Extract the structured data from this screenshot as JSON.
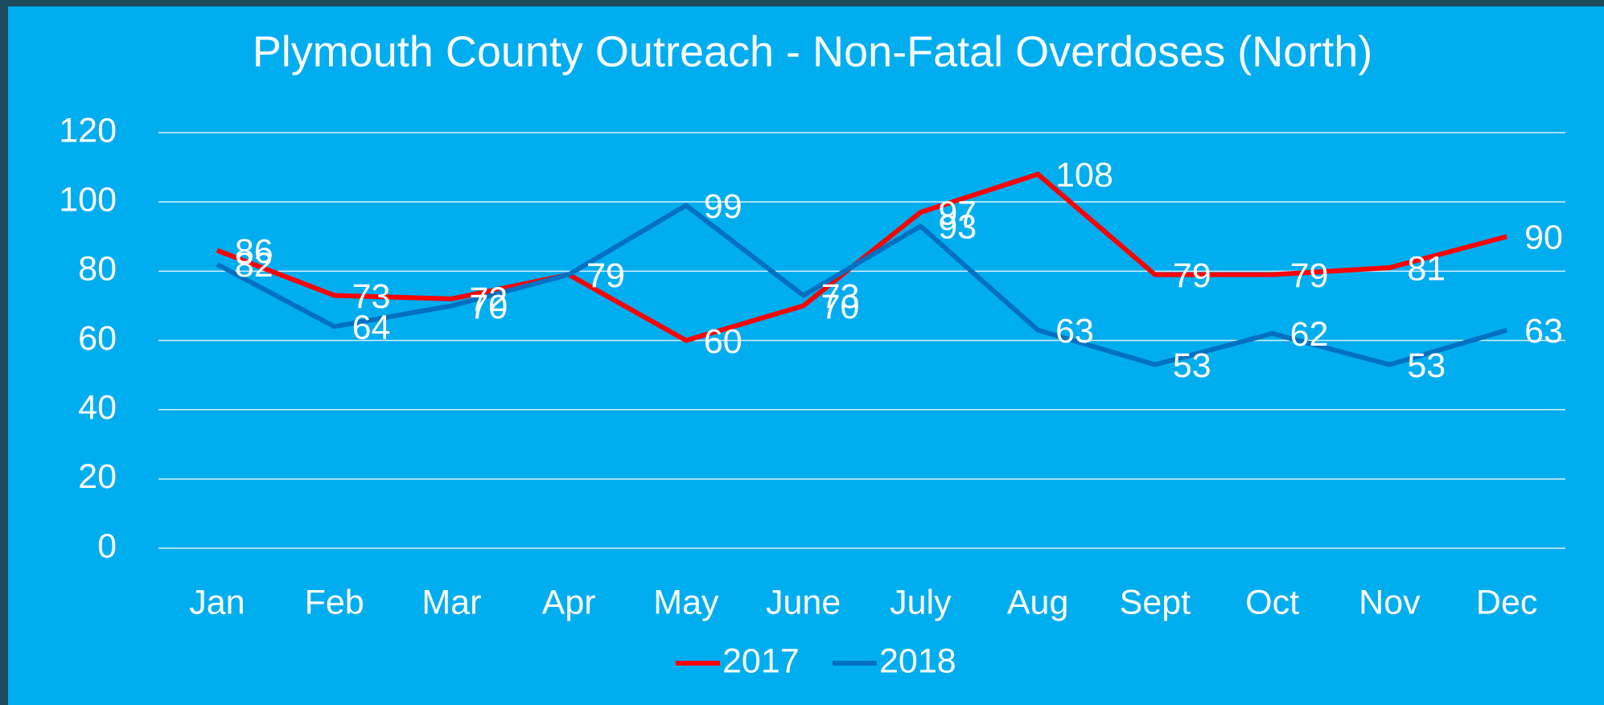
{
  "chart_data": {
    "type": "line",
    "title": "Plymouth County Outreach - Non-Fatal Overdoses (North)",
    "categories": [
      "Jan",
      "Feb",
      "Mar",
      "Apr",
      "May",
      "June",
      "July",
      "Aug",
      "Sept",
      "Oct",
      "Nov",
      "Dec"
    ],
    "series": [
      {
        "name": "2017",
        "color": "#ff0000",
        "values": [
          86,
          73,
          72,
          79,
          60,
          70,
          97,
          108,
          79,
          79,
          81,
          90
        ]
      },
      {
        "name": "2018",
        "color": "#0070c0",
        "values": [
          82,
          64,
          70,
          79,
          99,
          73,
          93,
          63,
          53,
          62,
          53,
          63
        ]
      }
    ],
    "ylim": [
      0,
      120
    ],
    "yticks": [
      0,
      20,
      40,
      60,
      80,
      100,
      120
    ],
    "grid": true,
    "legend": "bottom"
  }
}
